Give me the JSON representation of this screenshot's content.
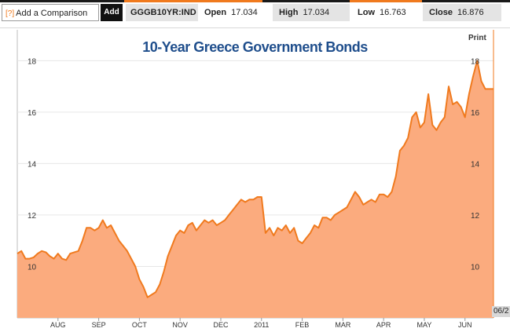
{
  "toolbar": {
    "comparison_icon": "[?]",
    "comparison_label": "Add a Comparison",
    "add_label": "Add",
    "ticker": "GGGB10YR:IND",
    "open_label": "Open",
    "open_value": "17.034",
    "high_label": "High",
    "high_value": "17.034",
    "low_label": "Low",
    "low_value": "16.763",
    "close_label": "Close",
    "close_value": "16.876"
  },
  "print_label": "Print",
  "date_flag": "06/2",
  "colors": {
    "line": "#f07a1e",
    "fill": "#fbab7e",
    "title": "#1f4e8c",
    "accent": "#f07a1e"
  },
  "chart_data": {
    "type": "area",
    "title": "10-Year Greece Government Bonds",
    "xlabel": "",
    "ylabel": "",
    "ylim": [
      8.0,
      19.2
    ],
    "yticks": [
      10,
      12,
      14,
      16,
      18
    ],
    "ytick_labels": [
      "10",
      "12",
      "14",
      "16",
      "18"
    ],
    "month_labels": [
      "AUG",
      "SEP",
      "OCT",
      "NOV",
      "DEC",
      "2011",
      "FEB",
      "MAR",
      "APR",
      "MAY",
      "JUN"
    ],
    "month_positions": [
      1.0,
      2.0,
      3.0,
      4.0,
      5.0,
      6.0,
      7.0,
      8.0,
      9.0,
      10.0,
      11.0
    ],
    "x": [
      0.0,
      0.1,
      0.2,
      0.3,
      0.4,
      0.5,
      0.6,
      0.7,
      0.8,
      0.9,
      1.0,
      1.1,
      1.2,
      1.3,
      1.5,
      1.6,
      1.7,
      1.8,
      1.9,
      2.0,
      2.1,
      2.2,
      2.3,
      2.4,
      2.5,
      2.6,
      2.7,
      2.8,
      2.9,
      3.0,
      3.1,
      3.2,
      3.3,
      3.4,
      3.5,
      3.6,
      3.7,
      3.8,
      3.9,
      4.0,
      4.1,
      4.2,
      4.3,
      4.4,
      4.5,
      4.6,
      4.7,
      4.8,
      4.9,
      5.0,
      5.1,
      5.2,
      5.3,
      5.4,
      5.5,
      5.6,
      5.7,
      5.8,
      5.9,
      6.0,
      6.1,
      6.2,
      6.3,
      6.4,
      6.5,
      6.6,
      6.7,
      6.8,
      6.9,
      7.0,
      7.1,
      7.2,
      7.3,
      7.4,
      7.5,
      7.6,
      7.7,
      7.8,
      7.9,
      8.0,
      8.1,
      8.2,
      8.3,
      8.4,
      8.5,
      8.6,
      8.7,
      8.8,
      8.9,
      9.0,
      9.1,
      9.2,
      9.3,
      9.4,
      9.5,
      9.6,
      9.7,
      9.8,
      9.9,
      10.0,
      10.1,
      10.2,
      10.3,
      10.4,
      10.5,
      10.6,
      10.7,
      10.8,
      10.9,
      11.0,
      11.1,
      11.2,
      11.3,
      11.4,
      11.5,
      11.6,
      11.7
    ],
    "values": [
      10.5,
      10.6,
      10.3,
      10.3,
      10.35,
      10.5,
      10.6,
      10.55,
      10.4,
      10.3,
      10.5,
      10.3,
      10.25,
      10.5,
      10.6,
      11.0,
      11.5,
      11.5,
      11.4,
      11.5,
      11.8,
      11.5,
      11.6,
      11.3,
      11.0,
      10.8,
      10.6,
      10.3,
      10.0,
      9.5,
      9.2,
      8.8,
      8.9,
      9.0,
      9.3,
      9.8,
      10.4,
      10.8,
      11.2,
      11.4,
      11.3,
      11.6,
      11.7,
      11.4,
      11.6,
      11.8,
      11.7,
      11.8,
      11.6,
      11.7,
      11.8,
      12.0,
      12.2,
      12.4,
      12.6,
      12.5,
      12.6,
      12.6,
      12.7,
      12.7,
      11.3,
      11.5,
      11.2,
      11.5,
      11.4,
      11.6,
      11.3,
      11.5,
      11.0,
      10.9,
      11.1,
      11.3,
      11.6,
      11.5,
      11.9,
      11.9,
      11.8,
      12.0,
      12.1,
      12.2,
      12.3,
      12.6,
      12.9,
      12.7,
      12.4,
      12.5,
      12.6,
      12.5,
      12.8,
      12.8,
      12.7,
      12.9,
      13.5,
      14.5,
      14.7,
      15.0,
      15.8,
      16.0,
      15.4,
      15.6,
      16.7,
      15.5,
      15.3,
      15.6,
      15.8,
      17.0,
      16.3,
      16.4,
      16.2,
      15.8,
      16.7,
      17.4,
      18.0,
      17.2,
      16.9,
      16.9,
      16.9
    ]
  }
}
